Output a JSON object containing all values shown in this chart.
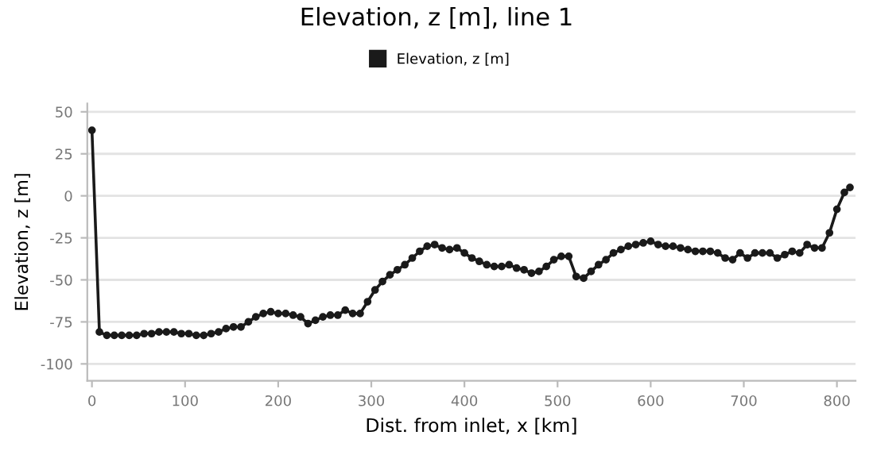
{
  "chart_data": {
    "type": "line",
    "title": "Elevation, z [m], line 1",
    "xlabel": "Dist. from inlet, x [km]",
    "ylabel": "Elevation, z [m]",
    "x": [
      0,
      8,
      16,
      24,
      32,
      40,
      48,
      56,
      64,
      72,
      80,
      88,
      96,
      104,
      112,
      120,
      128,
      136,
      144,
      152,
      160,
      168,
      176,
      184,
      192,
      200,
      208,
      216,
      224,
      232,
      240,
      248,
      256,
      264,
      272,
      280,
      288,
      296,
      304,
      312,
      320,
      328,
      336,
      344,
      352,
      360,
      368,
      376,
      384,
      392,
      400,
      408,
      416,
      424,
      432,
      440,
      448,
      456,
      464,
      472,
      480,
      488,
      496,
      504,
      512,
      520,
      528,
      536,
      544,
      552,
      560,
      568,
      576,
      584,
      592,
      600,
      608,
      616,
      624,
      632,
      640,
      648,
      656,
      664,
      672,
      680,
      688,
      696,
      704,
      712,
      720,
      728,
      736,
      744,
      752,
      760,
      768,
      776,
      784,
      792,
      800,
      808,
      814
    ],
    "series": [
      {
        "name": "Elevation, z [m]",
        "color": "#1a1a1a",
        "values": [
          39,
          -81,
          -83,
          -83,
          -83,
          -83,
          -83,
          -82,
          -82,
          -81,
          -81,
          -81,
          -82,
          -82,
          -83,
          -83,
          -82,
          -81,
          -79,
          -78,
          -78,
          -75,
          -72,
          -70,
          -69,
          -70,
          -70,
          -71,
          -72,
          -76,
          -74,
          -72,
          -71,
          -71,
          -68,
          -70,
          -70,
          -63,
          -56,
          -51,
          -47,
          -44,
          -41,
          -37,
          -33,
          -30,
          -29,
          -31,
          -32,
          -31,
          -34,
          -37,
          -39,
          -41,
          -42,
          -42,
          -41,
          -43,
          -44,
          -46,
          -45,
          -42,
          -38,
          -36,
          -36,
          -48,
          -49,
          -45,
          -41,
          -38,
          -34,
          -32,
          -30,
          -29,
          -28,
          -27,
          -29,
          -30,
          -30,
          -31,
          -32,
          -33,
          -33,
          -33,
          -34,
          -37,
          -38,
          -34,
          -37,
          -34,
          -34,
          -34,
          -37,
          -35,
          -33,
          -34,
          -29,
          -31,
          -31,
          -22,
          -8,
          2,
          5
        ]
      }
    ],
    "xlim": [
      -5,
      820
    ],
    "ylim": [
      -110,
      55
    ],
    "xticks": [
      0,
      100,
      200,
      300,
      400,
      500,
      600,
      700,
      800
    ],
    "yticks": [
      -100,
      -75,
      -50,
      -25,
      0,
      25,
      50
    ],
    "grid": "y",
    "legend": "top",
    "marker": "circle",
    "line_style": "solid"
  }
}
